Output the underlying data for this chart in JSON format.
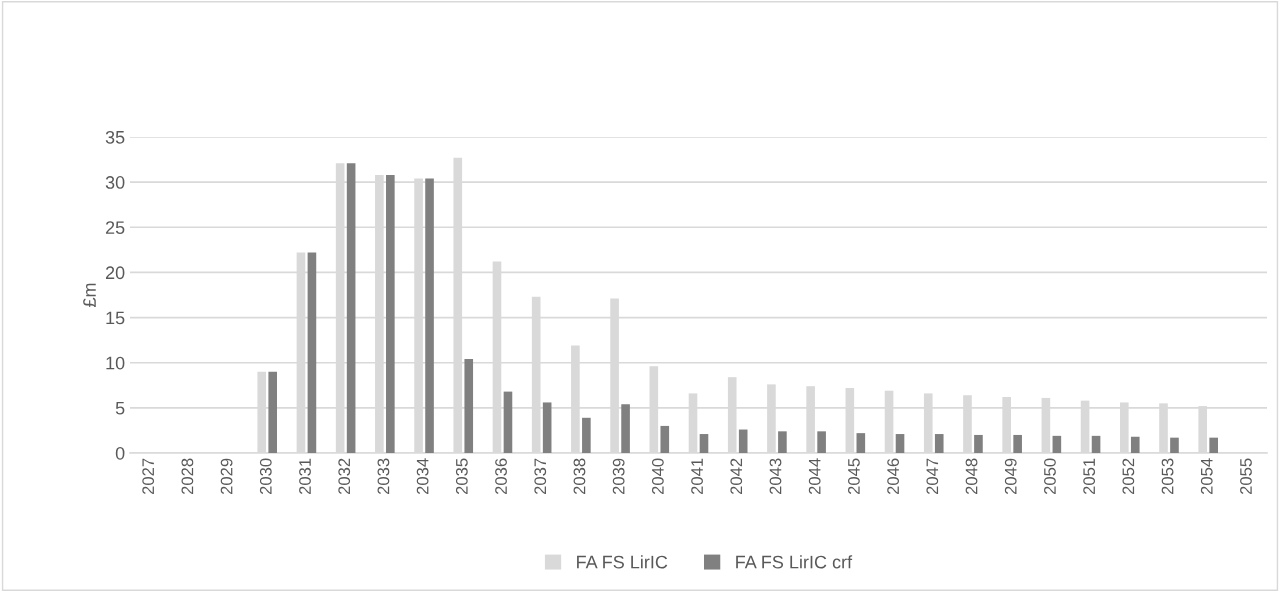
{
  "chart_data": {
    "type": "bar",
    "ylabel": "£m",
    "categories": [
      "2027",
      "2028",
      "2029",
      "2030",
      "2031",
      "2032",
      "2033",
      "2034",
      "2035",
      "2036",
      "2037",
      "2038",
      "2039",
      "2040",
      "2041",
      "2042",
      "2043",
      "2044",
      "2045",
      "2046",
      "2047",
      "2048",
      "2049",
      "2050",
      "2051",
      "2052",
      "2053",
      "2054",
      "2055"
    ],
    "series": [
      {
        "name": "FA FS LirIC",
        "color": "#d9d9d9",
        "values": [
          null,
          null,
          null,
          9.0,
          22.2,
          32.1,
          30.8,
          30.4,
          32.7,
          21.2,
          17.3,
          11.9,
          17.1,
          9.6,
          6.6,
          8.4,
          7.6,
          7.4,
          7.2,
          6.9,
          6.6,
          6.4,
          6.2,
          6.1,
          5.8,
          5.6,
          5.5,
          5.2,
          null
        ]
      },
      {
        "name": "FA FS LirIC crf",
        "color": "#808080",
        "values": [
          null,
          null,
          null,
          9.0,
          22.2,
          32.1,
          30.8,
          30.4,
          10.4,
          6.8,
          5.6,
          3.9,
          5.4,
          3.0,
          2.1,
          2.6,
          2.4,
          2.4,
          2.2,
          2.1,
          2.1,
          2.0,
          2.0,
          1.9,
          1.9,
          1.8,
          1.7,
          1.7,
          null
        ]
      }
    ],
    "ylim": [
      0,
      35
    ],
    "yticks": [
      0,
      5,
      10,
      15,
      20,
      25,
      30,
      35
    ],
    "grid": "y",
    "legend": "bottom"
  }
}
